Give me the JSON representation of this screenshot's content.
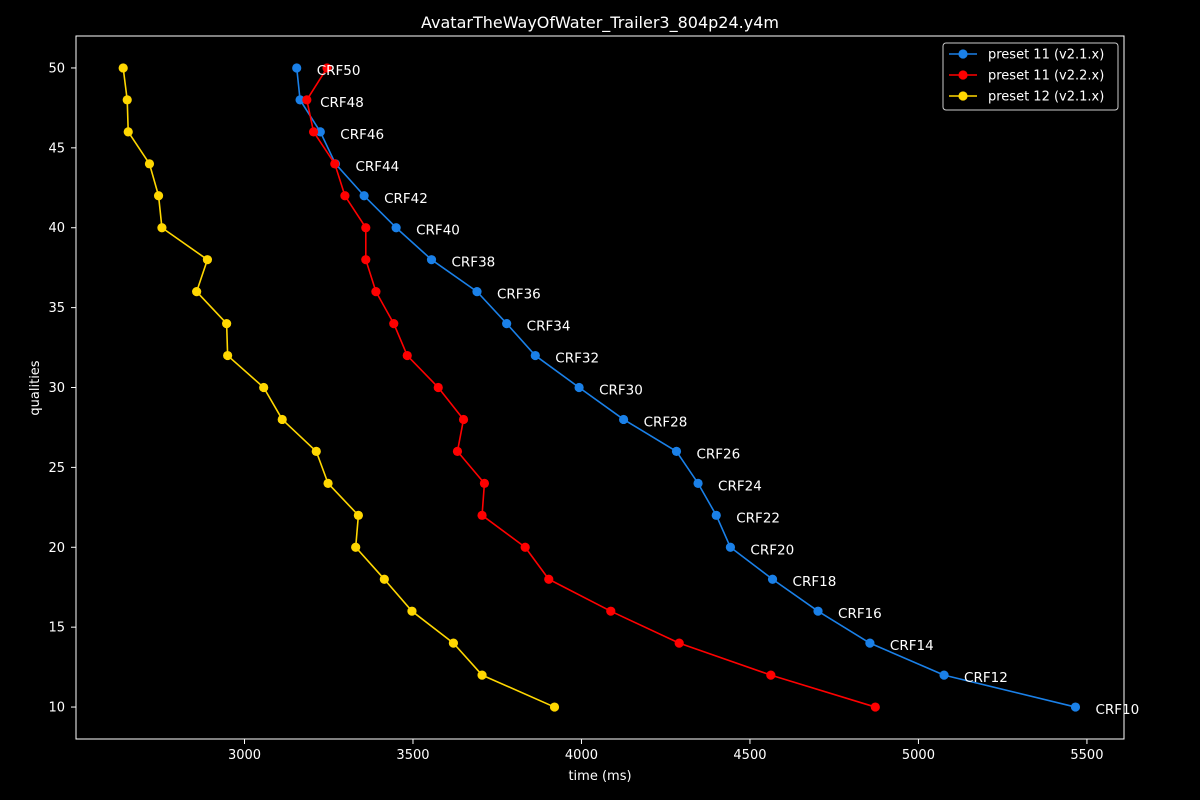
{
  "chart_data": {
    "type": "line",
    "title": "AvatarTheWayOfWater_Trailer3_804p24.y4m",
    "xlabel": "time (ms)",
    "ylabel": "qualities",
    "xlim": [
      2500,
      5610
    ],
    "ylim": [
      8,
      52
    ],
    "x_ticks": [
      3000,
      3500,
      4000,
      4500,
      5000,
      5500
    ],
    "y_ticks": [
      10,
      15,
      20,
      25,
      30,
      35,
      40,
      45,
      50
    ],
    "grid": false,
    "legend_position": "top-right",
    "background": "#000000",
    "foreground": "#ffffff",
    "point_labels": [
      "CRF50",
      "CRF48",
      "CRF46",
      "CRF44",
      "CRF42",
      "CRF40",
      "CRF38",
      "CRF36",
      "CRF34",
      "CRF32",
      "CRF30",
      "CRF28",
      "CRF26",
      "CRF24",
      "CRF22",
      "CRF20",
      "CRF18",
      "CRF16",
      "CRF14",
      "CRF12",
      "CRF10"
    ],
    "label_series": 0,
    "series": [
      {
        "name": "preset 11 (v2.1.x)",
        "color": "#1a80e8",
        "x": [
          3155,
          3165,
          3225,
          3270,
          3355,
          3450,
          3555,
          3690,
          3778,
          3863,
          3993,
          4125,
          4282,
          4346,
          4400,
          4442,
          4567,
          4702,
          4856,
          5076,
          5466
        ],
        "y": [
          50,
          48,
          46,
          44,
          42,
          40,
          38,
          36,
          34,
          32,
          30,
          28,
          26,
          24,
          22,
          20,
          18,
          16,
          14,
          12,
          10
        ]
      },
      {
        "name": "preset 11 (v2.2.x)",
        "color": "#ff0000",
        "x": [
          3245,
          3185,
          3205,
          3268,
          3298,
          3360,
          3360,
          3390,
          3443,
          3483,
          3575,
          3650,
          3632,
          3712,
          3705,
          3833,
          3903,
          4087,
          4290,
          4562,
          4872
        ],
        "y": [
          50,
          48,
          46,
          44,
          42,
          40,
          38,
          36,
          34,
          32,
          30,
          28,
          26,
          24,
          22,
          20,
          18,
          16,
          14,
          12,
          10
        ]
      },
      {
        "name": "preset 12 (v2.1.x)",
        "color": "#ffd700",
        "x": [
          2640,
          2652,
          2655,
          2718,
          2745,
          2755,
          2890,
          2858,
          2947,
          2950,
          3057,
          3112,
          3213,
          3248,
          3338,
          3330,
          3415,
          3497,
          3620,
          3705,
          3920
        ],
        "y": [
          50,
          48,
          46,
          44,
          42,
          40,
          38,
          36,
          34,
          32,
          30,
          28,
          26,
          24,
          22,
          20,
          18,
          16,
          14,
          12,
          10
        ]
      }
    ]
  }
}
